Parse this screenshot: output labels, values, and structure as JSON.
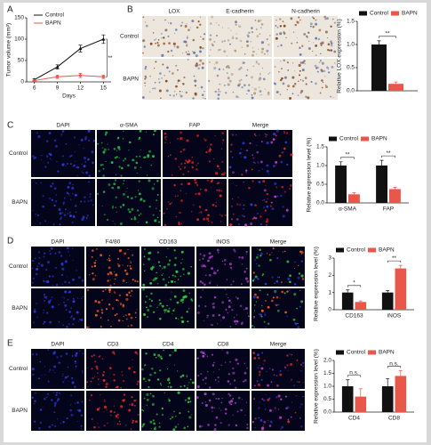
{
  "figure": {
    "panel_labels": [
      "A",
      "B",
      "C",
      "D",
      "E"
    ],
    "image_panels": [
      {
        "columns": [
          "LOX",
          "E-cadherin",
          "N-cadherin"
        ],
        "rows": [
          "Control",
          "BAPN"
        ]
      },
      {
        "columns": [
          "DAPI",
          "α-SMA",
          "FAP",
          "Merge"
        ],
        "rows": [
          "Control",
          "BAPN"
        ]
      },
      {
        "columns": [
          "DAPI",
          "F4/80",
          "CD163",
          "iNOS",
          "Merge"
        ],
        "rows": [
          "Control",
          "BAPN"
        ]
      },
      {
        "columns": [
          "DAPI",
          "CD3",
          "CD4",
          "CD8",
          "Merge"
        ],
        "rows": [
          "Control",
          "BAPN"
        ]
      }
    ]
  },
  "chart_data": [
    {
      "type": "line",
      "ylabel": "Tumor volume (mm³)",
      "xlabel": "Days",
      "x": [
        6,
        9,
        12,
        15
      ],
      "xlim": [
        5,
        16
      ],
      "xticks": [
        6,
        9,
        12,
        15
      ],
      "ylim": [
        0,
        150
      ],
      "yticks": [
        0,
        50,
        100,
        150
      ],
      "significance": "**",
      "legend": "upper left",
      "series": [
        {
          "name": "Control",
          "color": "#111111",
          "marker": "triangle",
          "values": [
            5,
            35,
            78,
            100
          ],
          "errors": [
            2,
            5,
            8,
            10
          ]
        },
        {
          "name": "BAPN",
          "color": "#e8574a",
          "marker": "circle",
          "values": [
            3,
            12,
            15,
            12
          ],
          "errors": [
            1,
            4,
            5,
            4
          ]
        }
      ]
    },
    {
      "type": "bar",
      "ylabel": "Relative LOX expression (%)",
      "categories": [
        null
      ],
      "ylim": [
        0,
        1.5
      ],
      "yticks": [
        {
          "value": 0,
          "label": "0.0"
        },
        0.5,
        {
          "value": 1,
          "label": "1.0"
        },
        1.5
      ],
      "significance": [
        "**"
      ],
      "legend": "top",
      "series": [
        {
          "name": "Control",
          "color": "#111111",
          "values": [
            1.0
          ],
          "errors": [
            0.08
          ]
        },
        {
          "name": "BAPN",
          "color": "#e8574a",
          "values": [
            0.15
          ],
          "errors": [
            0.04
          ]
        }
      ]
    },
    {
      "type": "bar",
      "ylabel": "Relative expression level (%)",
      "categories": [
        "α-SMA",
        "FAP"
      ],
      "ylim": [
        0,
        1.5
      ],
      "yticks": [
        {
          "value": 0,
          "label": "0.0"
        },
        0.5,
        {
          "value": 1,
          "label": "1.0"
        },
        1.5
      ],
      "significance": [
        "**",
        "**"
      ],
      "legend": "top",
      "series": [
        {
          "name": "Control",
          "color": "#111111",
          "values": [
            1.0,
            1.0
          ],
          "errors": [
            0.1,
            0.14
          ]
        },
        {
          "name": "BAPN",
          "color": "#e8574a",
          "values": [
            0.23,
            0.37
          ],
          "errors": [
            0.04,
            0.05
          ]
        }
      ]
    },
    {
      "type": "bar",
      "ylabel": "Relative expression level (%)",
      "categories": [
        "CD163",
        "iNOS"
      ],
      "ylim": [
        0,
        3
      ],
      "yticks": [
        0,
        1,
        2,
        3
      ],
      "significance": [
        "*",
        "**"
      ],
      "legend": "top",
      "series": [
        {
          "name": "Control",
          "color": "#111111",
          "values": [
            1.0,
            1.0
          ],
          "errors": [
            0.15,
            0.12
          ]
        },
        {
          "name": "BAPN",
          "color": "#e8574a",
          "values": [
            0.45,
            2.4
          ],
          "errors": [
            0.06,
            0.18
          ]
        }
      ]
    },
    {
      "type": "bar",
      "ylabel": "Relative expression level (%)",
      "categories": [
        "CD4",
        "CD8"
      ],
      "ylim": [
        0,
        2
      ],
      "yticks": [
        {
          "value": 0,
          "label": "0.0"
        },
        0.5,
        {
          "value": 1,
          "label": "1.0"
        },
        1.5,
        {
          "value": 2,
          "label": "2.0"
        }
      ],
      "significance": [
        "n.s.",
        "n.s."
      ],
      "legend": "top",
      "series": [
        {
          "name": "Control",
          "color": "#111111",
          "values": [
            1.0,
            1.0
          ],
          "errors": [
            0.25,
            0.3
          ]
        },
        {
          "name": "BAPN",
          "color": "#e8574a",
          "values": [
            0.6,
            1.4
          ],
          "errors": [
            0.3,
            0.2
          ]
        }
      ]
    }
  ]
}
